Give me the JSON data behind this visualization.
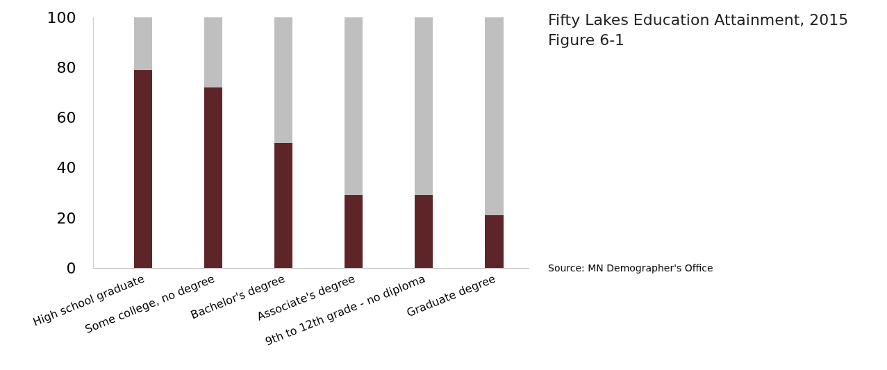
{
  "chart_data": {
    "type": "bar",
    "title": "Fifty Lakes Education Attainment, 2015",
    "subtitle": "Figure 6-1",
    "annotations": [
      "Source: MN Demographer's Office"
    ],
    "categories": [
      "High school graduate",
      "Some college, no degree",
      "Bachelor's degree",
      "Associate's degree",
      "9th to 12th grade - no diploma",
      "Graduate degree"
    ],
    "stacked": true,
    "series": [
      {
        "color": "#5e2528",
        "values": [
          79,
          72,
          50,
          29,
          29,
          21
        ]
      },
      {
        "color": "#bfbfbf",
        "values": [
          21,
          28,
          50,
          71,
          71,
          79
        ]
      }
    ],
    "ylim": [
      0,
      100
    ],
    "yticks": [
      0,
      20,
      40,
      60,
      80,
      100
    ]
  }
}
